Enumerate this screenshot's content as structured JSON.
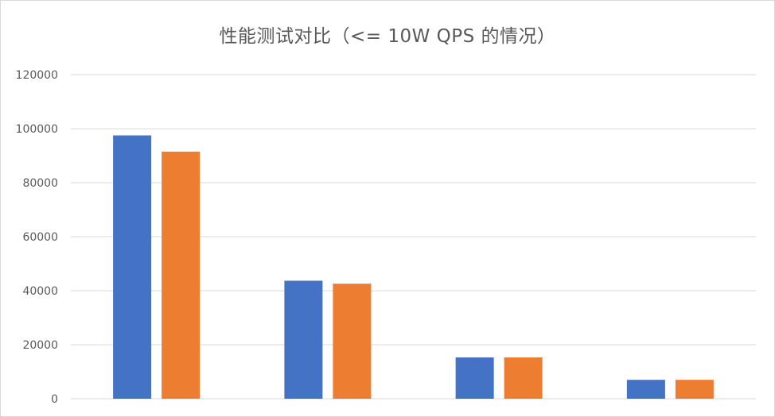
{
  "chart_data": {
    "type": "bar",
    "title": "性能测试对比（<= 10W QPS 的情况）",
    "categories": [
      "",
      "",
      "",
      ""
    ],
    "series": [
      {
        "color": "#4472c4",
        "values": [
          97500,
          43700,
          15300,
          7000
        ]
      },
      {
        "color": "#ed7d31",
        "values": [
          91500,
          42600,
          15300,
          7000
        ]
      }
    ],
    "ylim": [
      0,
      120000
    ],
    "yticks": [
      0,
      20000,
      40000,
      60000,
      80000,
      100000,
      120000
    ],
    "ytick_labels": [
      "0",
      "20000",
      "40000",
      "60000",
      "80000",
      "100000",
      "120000"
    ],
    "grid": true,
    "legend": "none"
  }
}
